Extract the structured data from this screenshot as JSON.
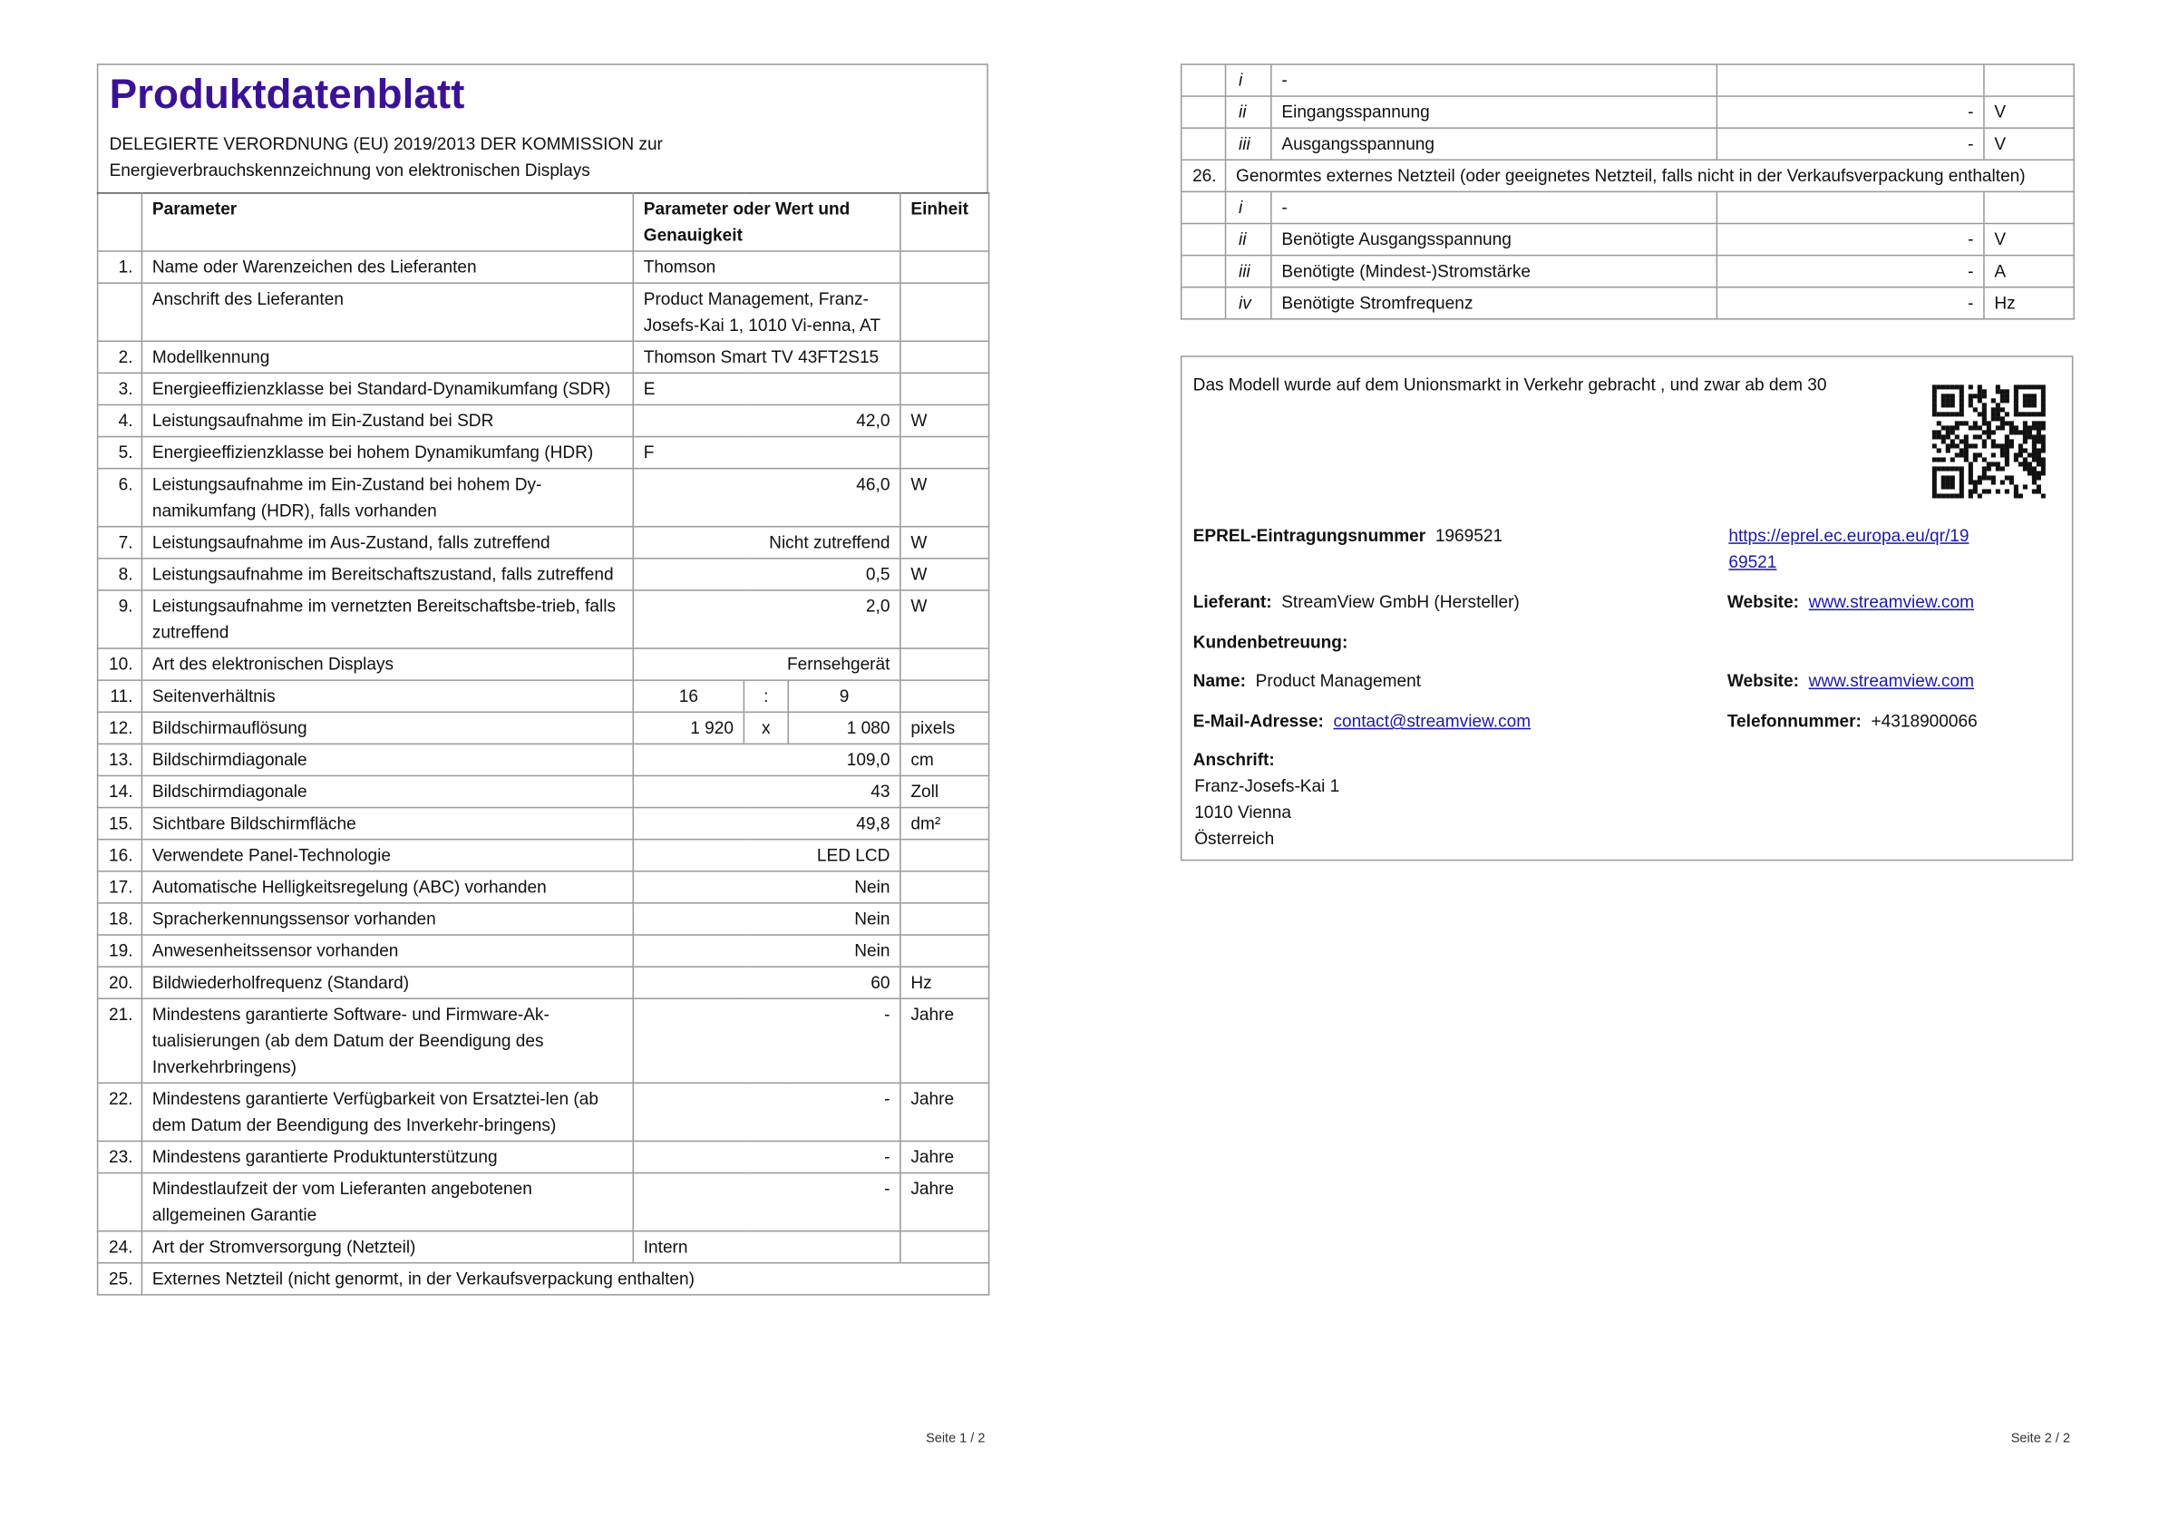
{
  "page1": {
    "title": "Produktdatenblatt",
    "subtitle_line1": "DELEGIERTE VERORDNUNG (EU) 2019/2013 DER KOMMISSION zur",
    "subtitle_line2": "Energieverbrauchskennzeichnung von elektronischen Displays",
    "headers": {
      "param": "Parameter",
      "value": "Parameter oder Wert und Genauigkeit",
      "unit": "Einheit"
    },
    "rows": [
      {
        "num": "1.",
        "param": "Name oder Warenzeichen des Lieferanten",
        "value": "Thomson",
        "unit": ""
      },
      {
        "num": "",
        "param": "Anschrift des Lieferanten",
        "value": "Product Management, Franz-Josefs-Kai 1, 1010 Vi-enna, AT",
        "unit": ""
      },
      {
        "num": "2.",
        "param": "Modellkennung",
        "value": "Thomson Smart TV 43FT2S15",
        "unit": ""
      },
      {
        "num": "3.",
        "param": "Energieeffizienzklasse bei Standard-Dynamikumfang (SDR)",
        "value": "E",
        "unit": ""
      },
      {
        "num": "4.",
        "param": "Leistungsaufnahme im Ein-Zustand bei SDR",
        "value": "42,0",
        "unit": "W"
      },
      {
        "num": "5.",
        "param": "Energieeffizienzklasse bei hohem Dynamikumfang (HDR)",
        "value": "F",
        "unit": ""
      },
      {
        "num": "6.",
        "param": "Leistungsaufnahme im Ein-Zustand bei hohem Dy-namikumfang (HDR), falls vorhanden",
        "value": "46,0",
        "unit": "W"
      },
      {
        "num": "7.",
        "param": "Leistungsaufnahme im Aus-Zustand, falls zutreffend",
        "value": "Nicht zutreffend",
        "unit": "W"
      },
      {
        "num": "8.",
        "param": "Leistungsaufnahme im Bereitschaftszustand, falls zutreffend",
        "value": "0,5",
        "unit": "W"
      },
      {
        "num": "9.",
        "param": "Leistungsaufnahme im vernetzten Bereitschaftsbe-trieb, falls zutreffend",
        "value": "2,0",
        "unit": "W"
      },
      {
        "num": "10.",
        "param": "Art des elektronischen Displays",
        "value": "Fernsehgerät",
        "unit": ""
      },
      {
        "num": "11.",
        "param": "Seitenverhältnis",
        "parts": [
          "16",
          ":",
          "9"
        ],
        "unit": ""
      },
      {
        "num": "12.",
        "param": "Bildschirmauflösung",
        "parts": [
          "1 920",
          "x",
          "1 080"
        ],
        "unit": "pixels"
      },
      {
        "num": "13.",
        "param": "Bildschirmdiagonale",
        "value": "109,0",
        "unit": "cm"
      },
      {
        "num": "14.",
        "param": "Bildschirmdiagonale",
        "value": "43",
        "unit": "Zoll"
      },
      {
        "num": "15.",
        "param": "Sichtbare Bildschirmfläche",
        "value": "49,8",
        "unit": "dm²"
      },
      {
        "num": "16.",
        "param": "Verwendete Panel-Technologie",
        "value": "LED LCD",
        "unit": ""
      },
      {
        "num": "17.",
        "param": "Automatische Helligkeitsregelung (ABC) vorhanden",
        "value": "Nein",
        "unit": ""
      },
      {
        "num": "18.",
        "param": "Spracherkennungssensor vorhanden",
        "value": "Nein",
        "unit": ""
      },
      {
        "num": "19.",
        "param": "Anwesenheitssensor vorhanden",
        "value": "Nein",
        "unit": ""
      },
      {
        "num": "20.",
        "param": "Bildwiederholfrequenz (Standard)",
        "value": "60",
        "unit": "Hz"
      },
      {
        "num": "21.",
        "param": "Mindestens garantierte Software- und Firmware-Ak-tualisierungen (ab dem Datum der Beendigung des Inverkehrbringens)",
        "value": "-",
        "unit": "Jahre"
      },
      {
        "num": "22.",
        "param": "Mindestens garantierte Verfügbarkeit von Ersatztei-len (ab dem Datum der Beendigung des Inverkehr-bringens)",
        "value": "-",
        "unit": "Jahre"
      },
      {
        "num": "23.",
        "param": "Mindestens garantierte Produktunterstützung",
        "value": "-",
        "unit": "Jahre"
      },
      {
        "num": "",
        "param": "Mindestlaufzeit der vom Lieferanten angebotenen allgemeinen Garantie",
        "value": "-",
        "unit": "Jahre"
      },
      {
        "num": "24.",
        "param": "Art der Stromversorgung (Netzteil)",
        "value": "Intern",
        "unit": ""
      },
      {
        "num": "25.",
        "param": "Externes Netzteil (nicht genormt, in der Verkaufsverpackung enthalten)",
        "span": true
      }
    ],
    "footer": "Seite 1 / 2"
  },
  "page2": {
    "rows": [
      {
        "num": "",
        "roman": "i",
        "label": "-",
        "value": "",
        "unit": ""
      },
      {
        "num": "",
        "roman": "ii",
        "label": "Eingangsspannung",
        "value": "-",
        "unit": "V"
      },
      {
        "num": "",
        "roman": "iii",
        "label": "Ausgangsspannung",
        "value": "-",
        "unit": "V"
      },
      {
        "num": "26.",
        "label": "Genormtes externes Netzteil (oder geeignetes Netzteil, falls nicht in der Verkaufsverpackung enthalten)",
        "span": true
      },
      {
        "num": "",
        "roman": "i",
        "label": "-",
        "value": "",
        "unit": ""
      },
      {
        "num": "",
        "roman": "ii",
        "label": "Benötigte Ausgangsspannung",
        "value": "-",
        "unit": "V"
      },
      {
        "num": "",
        "roman": "iii",
        "label": "Benötigte (Mindest-)Stromstärke",
        "value": "-",
        "unit": "A"
      },
      {
        "num": "",
        "roman": "iv",
        "label": "Benötigte Stromfrequenz",
        "value": "-",
        "unit": "Hz"
      }
    ],
    "info": {
      "market_text": "Das Modell wurde auf dem Unionsmarkt in Verkehr gebracht , und zwar ab dem 30",
      "eprel_label": "EPREL-Eintragungsnummer",
      "eprel_number": "1969521",
      "eprel_url_line1": "https://eprel.ec.europa.eu/qr/19",
      "eprel_url_line2": "69521",
      "supplier_label": "Lieferant:",
      "supplier": "StreamView GmbH (Hersteller)",
      "website_label": "Website:",
      "website": "www.streamview.com",
      "support_label": "Kundenbetreuung:",
      "name_label": "Name:",
      "name": "Product Management",
      "website2_label": "Website:",
      "website2": "www.streamview.com",
      "email_label": "E-Mail-Adresse:",
      "email": "contact@streamview.com",
      "phone_label": "Telefonnummer:",
      "phone": "+4318900066",
      "address_label": "Anschrift:",
      "address_line1": "Franz-Josefs-Kai 1",
      "address_line2": "1010 Vienna",
      "address_line3": "Österreich",
      "qr_icon": "qr-code-icon"
    },
    "footer": "Seite 2 / 2"
  },
  "colors": {
    "title": "#3b1296",
    "link": "#1a1aa6",
    "border": "#9a9a9a"
  }
}
